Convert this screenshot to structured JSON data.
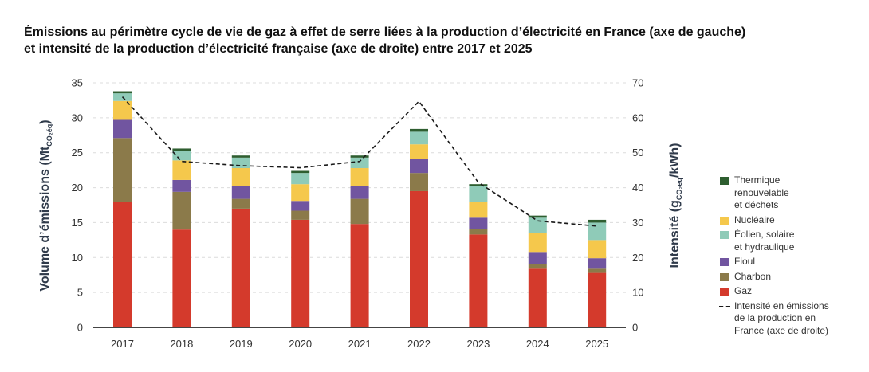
{
  "title_lines": [
    "Émissions au périmètre cycle de vie de gaz à effet de serre liées à la production d’électricité en France (axe de gauche)",
    "et intensité de la production d’électricité française (axe de droite) entre 2017 et 2025"
  ],
  "chart_data": {
    "type": "bar",
    "stacked": true,
    "categories": [
      "2017",
      "2018",
      "2019",
      "2020",
      "2021",
      "2022",
      "2023",
      "2024",
      "2025"
    ],
    "series": [
      {
        "name": "Gaz",
        "color": "#d43a2c",
        "values": [
          18.0,
          14.0,
          17.0,
          15.4,
          14.8,
          19.5,
          13.3,
          8.4,
          7.8
        ]
      },
      {
        "name": "Charbon",
        "color": "#8b7a4a",
        "values": [
          9.1,
          5.4,
          1.4,
          1.3,
          3.6,
          2.6,
          0.8,
          0.7,
          0.6
        ]
      },
      {
        "name": "Fioul",
        "color": "#7155a0",
        "values": [
          2.6,
          1.7,
          1.8,
          1.4,
          1.8,
          2.0,
          1.6,
          1.7,
          1.5
        ]
      },
      {
        "name": "Nucléaire",
        "color": "#f5c84c",
        "values": [
          2.7,
          2.8,
          2.6,
          2.4,
          2.6,
          2.1,
          2.3,
          2.7,
          2.6
        ]
      },
      {
        "name": "Éolien, solaire et hydraulique",
        "color": "#8fcbb8",
        "values": [
          1.1,
          1.4,
          1.5,
          1.6,
          1.5,
          1.8,
          2.2,
          2.2,
          2.5
        ]
      },
      {
        "name": "Thermique renouvelable et déchets",
        "color": "#2e5e30",
        "values": [
          0.3,
          0.3,
          0.3,
          0.3,
          0.3,
          0.4,
          0.3,
          0.3,
          0.4
        ]
      }
    ],
    "line": {
      "name": "Intensité en émissions de la production en France (axe de droite)",
      "axis": "right",
      "values": [
        66,
        47.5,
        46.3,
        45.7,
        47.5,
        64.7,
        41.5,
        30.5,
        29.0
      ]
    },
    "y_left": {
      "label": "Volume d’émissions (Mt",
      "label_sub": "CO₂éq",
      "label_end": ")",
      "min": 0,
      "max": 35,
      "ticks": [
        "0",
        "5",
        "10",
        "15",
        "20",
        "25",
        "30",
        "35"
      ]
    },
    "y_right": {
      "label": "Intensité (g",
      "label_sub": "CO₂eq",
      "label_end": "/kWh)",
      "min": 0,
      "max": 70,
      "ticks": [
        "0",
        "10",
        "20",
        "30",
        "40",
        "50",
        "60",
        "70"
      ]
    },
    "grid": true,
    "legend_position": "right"
  },
  "legend": [
    {
      "label": "Thermique\nrenouvelable\net déchets",
      "color": "#2e5e30"
    },
    {
      "label": "Nucléaire",
      "color": "#f5c84c"
    },
    {
      "label": "Éolien, solaire\net hydraulique",
      "color": "#8fcbb8"
    },
    {
      "label": "Fioul",
      "color": "#7155a0"
    },
    {
      "label": "Charbon",
      "color": "#8b7a4a"
    },
    {
      "label": "Gaz",
      "color": "#d43a2c"
    },
    {
      "label": "Intensité en émissions\nde la production en\nFrance (axe de droite)",
      "line": true
    }
  ]
}
